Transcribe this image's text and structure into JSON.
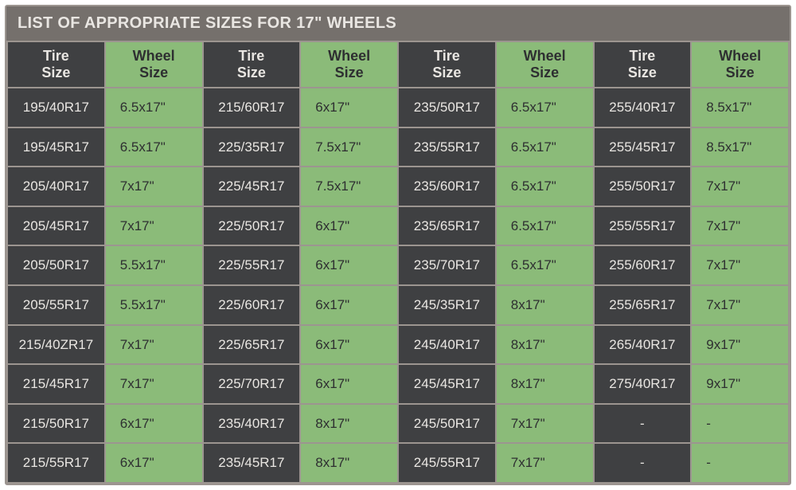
{
  "title": "LIST OF APPROPRIATE SIZES FOR 17\" WHEELS",
  "table": {
    "type": "table",
    "columns": [
      {
        "label": "Tire\nSize",
        "kind": "tire"
      },
      {
        "label": "Wheel\nSize",
        "kind": "wheel"
      },
      {
        "label": "Tire\nSize",
        "kind": "tire"
      },
      {
        "label": "Wheel\nSize",
        "kind": "wheel"
      },
      {
        "label": "Tire\nSize",
        "kind": "tire"
      },
      {
        "label": "Wheel\nSize",
        "kind": "wheel"
      },
      {
        "label": "Tire\nSize",
        "kind": "tire"
      },
      {
        "label": "Wheel\nSize",
        "kind": "wheel"
      }
    ],
    "rows": [
      [
        "195/40R17",
        "6.5x17\"",
        "215/60R17",
        "6x17\"",
        "235/50R17",
        "6.5x17\"",
        "255/40R17",
        "8.5x17\""
      ],
      [
        "195/45R17",
        "6.5x17\"",
        "225/35R17",
        "7.5x17\"",
        "235/55R17",
        "6.5x17\"",
        "255/45R17",
        "8.5x17\""
      ],
      [
        "205/40R17",
        "7x17\"",
        "225/45R17",
        "7.5x17\"",
        "235/60R17",
        "6.5x17\"",
        "255/50R17",
        "7x17\""
      ],
      [
        "205/45R17",
        "7x17\"",
        "225/50R17",
        "6x17\"",
        "235/65R17",
        "6.5x17\"",
        "255/55R17",
        "7x17\""
      ],
      [
        "205/50R17",
        "5.5x17\"",
        "225/55R17",
        "6x17\"",
        "235/70R17",
        "6.5x17\"",
        "255/60R17",
        "7x17\""
      ],
      [
        "205/55R17",
        "5.5x17\"",
        "225/60R17",
        "6x17\"",
        "245/35R17",
        "8x17\"",
        "255/65R17",
        "7x17\""
      ],
      [
        "215/40ZR17",
        "7x17\"",
        "225/65R17",
        "6x17\"",
        "245/40R17",
        "8x17\"",
        "265/40R17",
        "9x17\""
      ],
      [
        "215/45R17",
        "7x17\"",
        "225/70R17",
        "6x17\"",
        "245/45R17",
        "8x17\"",
        "275/40R17",
        "9x17\""
      ],
      [
        "215/50R17",
        "6x17\"",
        "235/40R17",
        "8x17\"",
        "245/50R17",
        "7x17\"",
        "-",
        "-"
      ],
      [
        "215/55R17",
        "6x17\"",
        "235/45R17",
        "8x17\"",
        "245/55R17",
        "7x17\"",
        "-",
        "-"
      ]
    ],
    "colors": {
      "panel_bg": "#3f4042",
      "border": "#9c9590",
      "title_bg": "#75706c",
      "title_text": "#e9e6e2",
      "tire_bg": "#3f4042",
      "tire_text": "#e9e6e2",
      "wheel_bg": "#8bbb79",
      "wheel_text": "#2e2f31",
      "grid_gap": "#9c9590"
    },
    "font_family": "Arial",
    "title_fontsize": 20,
    "header_fontsize": 18,
    "cell_fontsize": 17
  }
}
